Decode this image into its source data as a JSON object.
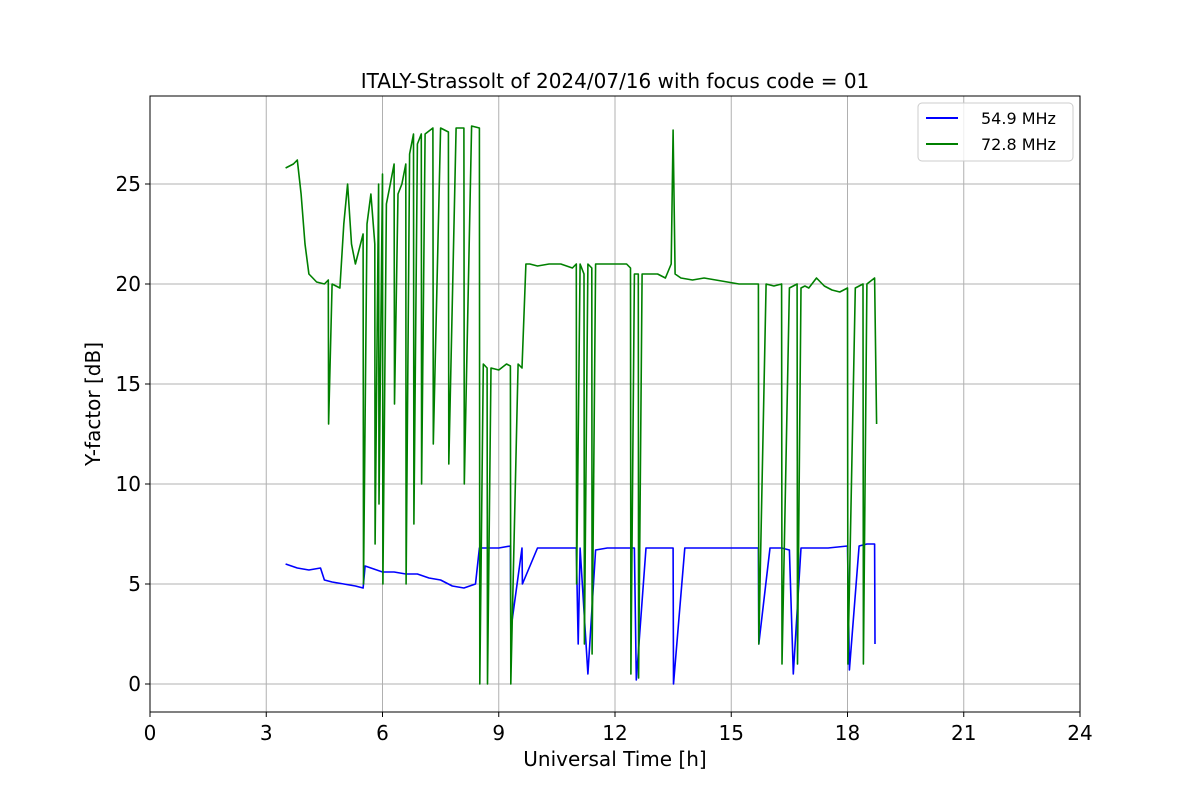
{
  "chart_data": {
    "type": "line",
    "title": "ITALY-Strassolt of 2024/07/16 with focus code = 01",
    "xlabel": "Universal Time [h]",
    "ylabel": "Y-factor [dB]",
    "xlim": [
      0,
      24
    ],
    "ylim": [
      -1.4,
      29.4
    ],
    "xticks": [
      0,
      3,
      6,
      9,
      12,
      15,
      18,
      21,
      24
    ],
    "xtick_labels": [
      "0",
      "3",
      "6",
      "9",
      "12",
      "15",
      "18",
      "21",
      "24"
    ],
    "yticks": [
      0,
      5,
      10,
      15,
      20,
      25
    ],
    "ytick_labels": [
      "0",
      "5",
      "10",
      "15",
      "20",
      "25"
    ],
    "grid": true,
    "legend_position": "top-right",
    "series": [
      {
        "name": "54.9 MHz",
        "color": "#0000ff",
        "x": [
          3.5,
          3.8,
          4.1,
          4.4,
          4.5,
          4.7,
          5.0,
          5.3,
          5.5,
          5.55,
          5.7,
          6.0,
          6.3,
          6.6,
          6.9,
          7.2,
          7.5,
          7.8,
          8.1,
          8.4,
          8.5,
          8.6,
          9.0,
          9.3,
          9.31,
          9.6,
          9.61,
          10.0,
          10.5,
          11.0,
          11.05,
          11.1,
          11.3,
          11.5,
          11.8,
          12.0,
          12.2,
          12.5,
          12.55,
          12.8,
          13.0,
          13.3,
          13.5,
          13.51,
          13.8,
          14.0,
          14.5,
          15.0,
          15.5,
          15.7,
          15.71,
          16.0,
          16.3,
          16.5,
          16.6,
          16.8,
          17.0,
          17.5,
          18.0,
          18.05,
          18.3,
          18.5,
          18.7,
          18.71
        ],
        "y": [
          6.0,
          5.8,
          5.7,
          5.8,
          5.2,
          5.1,
          5.0,
          4.9,
          4.8,
          5.9,
          5.8,
          5.6,
          5.6,
          5.5,
          5.5,
          5.3,
          5.2,
          4.9,
          4.8,
          5.0,
          6.8,
          6.8,
          6.8,
          6.9,
          2.7,
          6.8,
          5.0,
          6.8,
          6.8,
          6.8,
          2.0,
          6.8,
          0.5,
          6.7,
          6.8,
          6.8,
          6.8,
          6.8,
          0.2,
          6.8,
          6.8,
          6.8,
          6.8,
          0.0,
          6.8,
          6.8,
          6.8,
          6.8,
          6.8,
          6.8,
          2.0,
          6.8,
          6.8,
          6.7,
          0.5,
          6.8,
          6.8,
          6.8,
          6.9,
          0.7,
          6.9,
          7.0,
          7.0,
          2.0
        ]
      },
      {
        "name": "72.8 MHz",
        "color": "#008000",
        "x": [
          3.5,
          3.7,
          3.8,
          3.9,
          4.0,
          4.1,
          4.2,
          4.3,
          4.5,
          4.6,
          4.61,
          4.7,
          4.9,
          5.0,
          5.1,
          5.2,
          5.3,
          5.5,
          5.51,
          5.6,
          5.7,
          5.8,
          5.81,
          5.9,
          5.91,
          6.0,
          6.01,
          6.1,
          6.2,
          6.3,
          6.31,
          6.4,
          6.5,
          6.6,
          6.61,
          6.7,
          6.8,
          6.81,
          6.9,
          7.0,
          7.01,
          7.1,
          7.3,
          7.31,
          7.5,
          7.7,
          7.71,
          7.9,
          8.1,
          8.11,
          8.3,
          8.5,
          8.51,
          8.6,
          8.7,
          8.71,
          8.8,
          9.0,
          9.2,
          9.3,
          9.31,
          9.5,
          9.6,
          9.7,
          9.8,
          10.0,
          10.3,
          10.6,
          10.9,
          11.0,
          11.01,
          11.1,
          11.2,
          11.21,
          11.3,
          11.4,
          11.41,
          11.5,
          11.7,
          12.0,
          12.3,
          12.4,
          12.41,
          12.5,
          12.6,
          12.61,
          12.7,
          12.9,
          13.1,
          13.3,
          13.45,
          13.5,
          13.55,
          13.7,
          14.0,
          14.3,
          14.6,
          14.9,
          15.2,
          15.5,
          15.7,
          15.71,
          15.9,
          16.1,
          16.3,
          16.31,
          16.5,
          16.7,
          16.71,
          16.8,
          16.9,
          17.0,
          17.2,
          17.4,
          17.6,
          17.8,
          18.0,
          18.01,
          18.2,
          18.4,
          18.41,
          18.5,
          18.7,
          18.75
        ],
        "y": [
          25.8,
          26.0,
          26.2,
          24.5,
          22.0,
          20.5,
          20.3,
          20.1,
          20.0,
          20.2,
          13.0,
          20.0,
          19.8,
          23.0,
          25.0,
          22.0,
          21.0,
          22.5,
          5.0,
          23.0,
          24.5,
          22.0,
          7.0,
          25.0,
          9.0,
          25.5,
          5.0,
          24.0,
          25.0,
          26.0,
          14.0,
          24.5,
          25.0,
          26.0,
          5.0,
          26.5,
          27.5,
          8.0,
          27.0,
          27.5,
          10.0,
          27.5,
          27.8,
          12.0,
          27.8,
          27.6,
          11.0,
          27.8,
          27.8,
          10.0,
          27.9,
          27.8,
          0.0,
          16.0,
          15.8,
          0.0,
          15.8,
          15.7,
          16.0,
          15.9,
          0.0,
          16.0,
          15.8,
          21.0,
          21.0,
          20.9,
          21.0,
          21.0,
          20.8,
          21.0,
          5.0,
          21.0,
          20.5,
          2.0,
          21.0,
          20.8,
          1.5,
          21.0,
          21.0,
          21.0,
          21.0,
          20.8,
          0.5,
          20.5,
          20.5,
          0.3,
          20.5,
          20.5,
          20.5,
          20.3,
          21.0,
          27.7,
          20.5,
          20.3,
          20.2,
          20.3,
          20.2,
          20.1,
          20.0,
          20.0,
          20.0,
          2.0,
          20.0,
          19.9,
          20.0,
          1.0,
          19.8,
          20.0,
          1.0,
          19.8,
          19.9,
          19.8,
          20.3,
          19.9,
          19.7,
          19.6,
          19.8,
          1.0,
          19.8,
          20.0,
          1.0,
          20.0,
          20.3,
          13.0
        ]
      }
    ]
  }
}
